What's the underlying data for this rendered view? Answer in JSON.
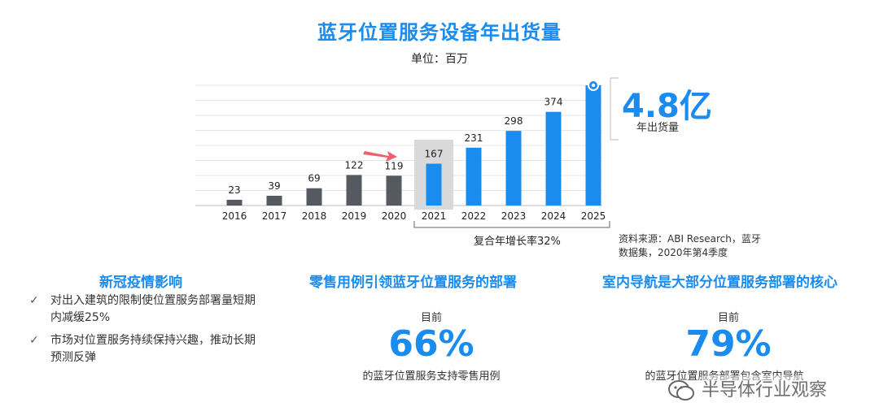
{
  "title": "蓝牙位置服务设备年出货量",
  "subtitle": "单位：百万",
  "highlight": {
    "value": "4.8亿",
    "label": "年出货量"
  },
  "cagr_label": "复合年增长率32%",
  "source": "资料来源：ABI Research，蓝牙数据集，2020年第4季度",
  "colors": {
    "accent": "#1a8cf0",
    "historical": "#555a60",
    "highlight_bg": "#d9d9d9",
    "arrow": "#f0606a"
  },
  "chart_data": {
    "type": "bar",
    "title": "蓝牙位置服务设备年出货量",
    "subtitle": "单位：百万",
    "categories": [
      "2016",
      "2017",
      "2018",
      "2019",
      "2020",
      "2021",
      "2022",
      "2023",
      "2024",
      "2025"
    ],
    "values": [
      23,
      39,
      69,
      122,
      119,
      167,
      231,
      298,
      374,
      480
    ],
    "value_labels": [
      "23",
      "39",
      "69",
      "122",
      "119",
      "167",
      "231",
      "298",
      "374",
      ""
    ],
    "forecast_from": "2021",
    "ylim": [
      0,
      480
    ],
    "grid": true,
    "xlabel": "",
    "ylabel": ""
  },
  "columns": [
    {
      "heading": "新冠疫情影响",
      "bullets": [
        "对出入建筑的限制使位置服务部署量短期内减缓25%",
        "市场对位置服务持续保持兴趣，推动长期预测反弹"
      ]
    },
    {
      "heading": "零售用例引领蓝牙位置服务的部署",
      "small": "目前",
      "pct": "66%",
      "caption": "的蓝牙位置服务支持零售用例"
    },
    {
      "heading": "室内导航是大部分位置服务部署的核心",
      "small": "目前",
      "pct": "79%",
      "caption": "的蓝牙位置服务部署包含室内导航"
    }
  ],
  "watermark": "半导体行业观察"
}
